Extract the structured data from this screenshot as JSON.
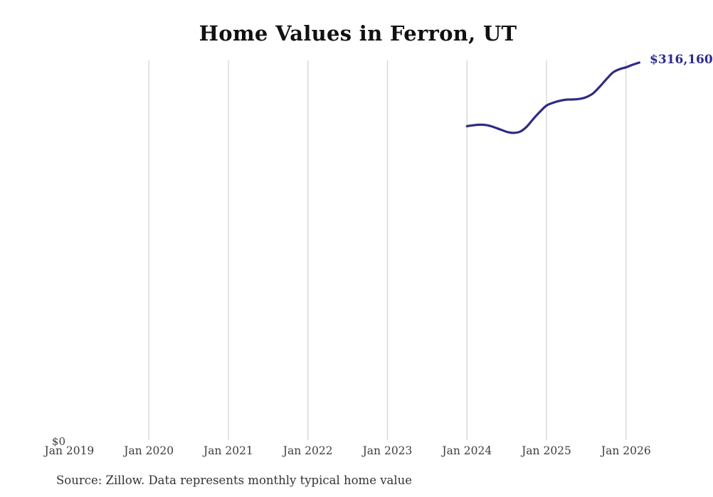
{
  "title": "Home Values in Ferron, UT",
  "source_note": "Source: Zillow. Data represents monthly typical home value",
  "y_zero_label": "$0",
  "latest_value_label": "$316,160",
  "colors": {
    "line": "#2e2b85",
    "latest_label": "#2e2b8f",
    "grid": "#d8d8d8",
    "title_text": "#111111",
    "axis_text": "#3d3d3d",
    "source_text": "#333333",
    "background": "#ffffff"
  },
  "chart_data": {
    "type": "line",
    "title": "Home Values in Ferron, UT",
    "xlabel": "",
    "ylabel": "",
    "grid": "vertical-only",
    "legend": "none",
    "y_axis": {
      "min": 0,
      "labels": [
        "$0"
      ],
      "unit": "USD"
    },
    "x_ticks": [
      {
        "label": "Jan 2019",
        "gridline": false
      },
      {
        "label": "Jan 2020",
        "gridline": true
      },
      {
        "label": "Jan 2021",
        "gridline": true
      },
      {
        "label": "Jan 2022",
        "gridline": true
      },
      {
        "label": "Jan 2023",
        "gridline": true
      },
      {
        "label": "Jan 2024",
        "gridline": true
      },
      {
        "label": "Jan 2025",
        "gridline": true
      },
      {
        "label": "Jan 2026",
        "gridline": true
      }
    ],
    "series": [
      {
        "name": "Typical home value",
        "end_label": "$316,160",
        "x": [
          "Jan 2024",
          "Feb 2024",
          "Mar 2024",
          "Apr 2024",
          "May 2024",
          "Jun 2024",
          "Jul 2024",
          "Aug 2024",
          "Sep 2024",
          "Oct 2024",
          "Nov 2024",
          "Dec 2024",
          "Jan 2025",
          "Feb 2025",
          "Mar 2025",
          "Apr 2025",
          "May 2025",
          "Jun 2025",
          "Jul 2025",
          "Aug 2025",
          "Sep 2025",
          "Oct 2025",
          "Nov 2025",
          "Dec 2025",
          "Jan 2026",
          "Feb 2026",
          "Mar 2026"
        ],
        "values": [
          263000,
          263800,
          264200,
          263800,
          262300,
          260300,
          258300,
          257400,
          258400,
          262500,
          269000,
          275000,
          280200,
          282600,
          284200,
          285200,
          285300,
          285800,
          287300,
          290300,
          295800,
          302000,
          307800,
          310600,
          312200,
          314400,
          316160
        ]
      }
    ]
  }
}
